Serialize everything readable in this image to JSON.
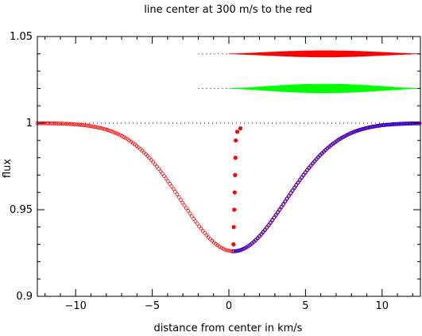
{
  "chart_data": {
    "type": "scatter",
    "title": "line center at 300 m/s to the red",
    "xlabel": "distance from center in km/s",
    "ylabel": "flux",
    "xlim": [
      -12.5,
      12.5
    ],
    "ylim": [
      0.9,
      1.05
    ],
    "xticks": [
      {
        "value": -10,
        "label": "−10"
      },
      {
        "value": -5,
        "label": "−5"
      },
      {
        "value": 0,
        "label": "0"
      },
      {
        "value": 5,
        "label": "5"
      },
      {
        "value": 10,
        "label": "10"
      }
    ],
    "yticks": [
      {
        "value": 0.9,
        "label": "0.9"
      },
      {
        "value": 0.95,
        "label": "0.95"
      },
      {
        "value": 1.0,
        "label": "1"
      },
      {
        "value": 1.05,
        "label": "1.05"
      }
    ],
    "line_profile": {
      "depth": 0.074,
      "center": 0.3,
      "sigma": 3.4,
      "x_range": [
        -12.5,
        12.5
      ],
      "step": 0.12
    },
    "series": [
      {
        "color": "#ff0000",
        "marker": "open-circle",
        "x_range": [
          -12.5,
          12.5
        ]
      },
      {
        "color": "#0000ff",
        "marker": "open-circle",
        "x_range": [
          0.3,
          12.5
        ]
      }
    ],
    "bisector": {
      "color": "#ff0000",
      "marker": "filled-circle",
      "points": [
        {
          "x": 0.3,
          "y": 0.93
        },
        {
          "x": 0.32,
          "y": 0.94
        },
        {
          "x": 0.35,
          "y": 0.95
        },
        {
          "x": 0.38,
          "y": 0.96
        },
        {
          "x": 0.4,
          "y": 0.97
        },
        {
          "x": 0.43,
          "y": 0.98
        },
        {
          "x": 0.45,
          "y": 0.99
        },
        {
          "x": 0.55,
          "y": 0.995
        },
        {
          "x": 0.75,
          "y": 0.997
        }
      ]
    },
    "difference_bands": [
      {
        "color": "#ff0000",
        "baseline": 1.04,
        "x_range": [
          0.0,
          12.5
        ],
        "max_halfwidth": 0.0018
      },
      {
        "color": "#00ff00",
        "baseline": 1.02,
        "x_range": [
          0.0,
          12.5
        ],
        "max_halfwidth": 0.0025
      }
    ],
    "reference_lines": [
      {
        "y": 1.0,
        "x_range": [
          -12.5,
          12.5
        ],
        "style": "dotted"
      },
      {
        "y": 1.04,
        "x_range": [
          -2.0,
          0.0
        ],
        "style": "dotted"
      },
      {
        "y": 1.02,
        "x_range": [
          -2.0,
          0.0
        ],
        "style": "dotted"
      }
    ],
    "grid": false
  }
}
